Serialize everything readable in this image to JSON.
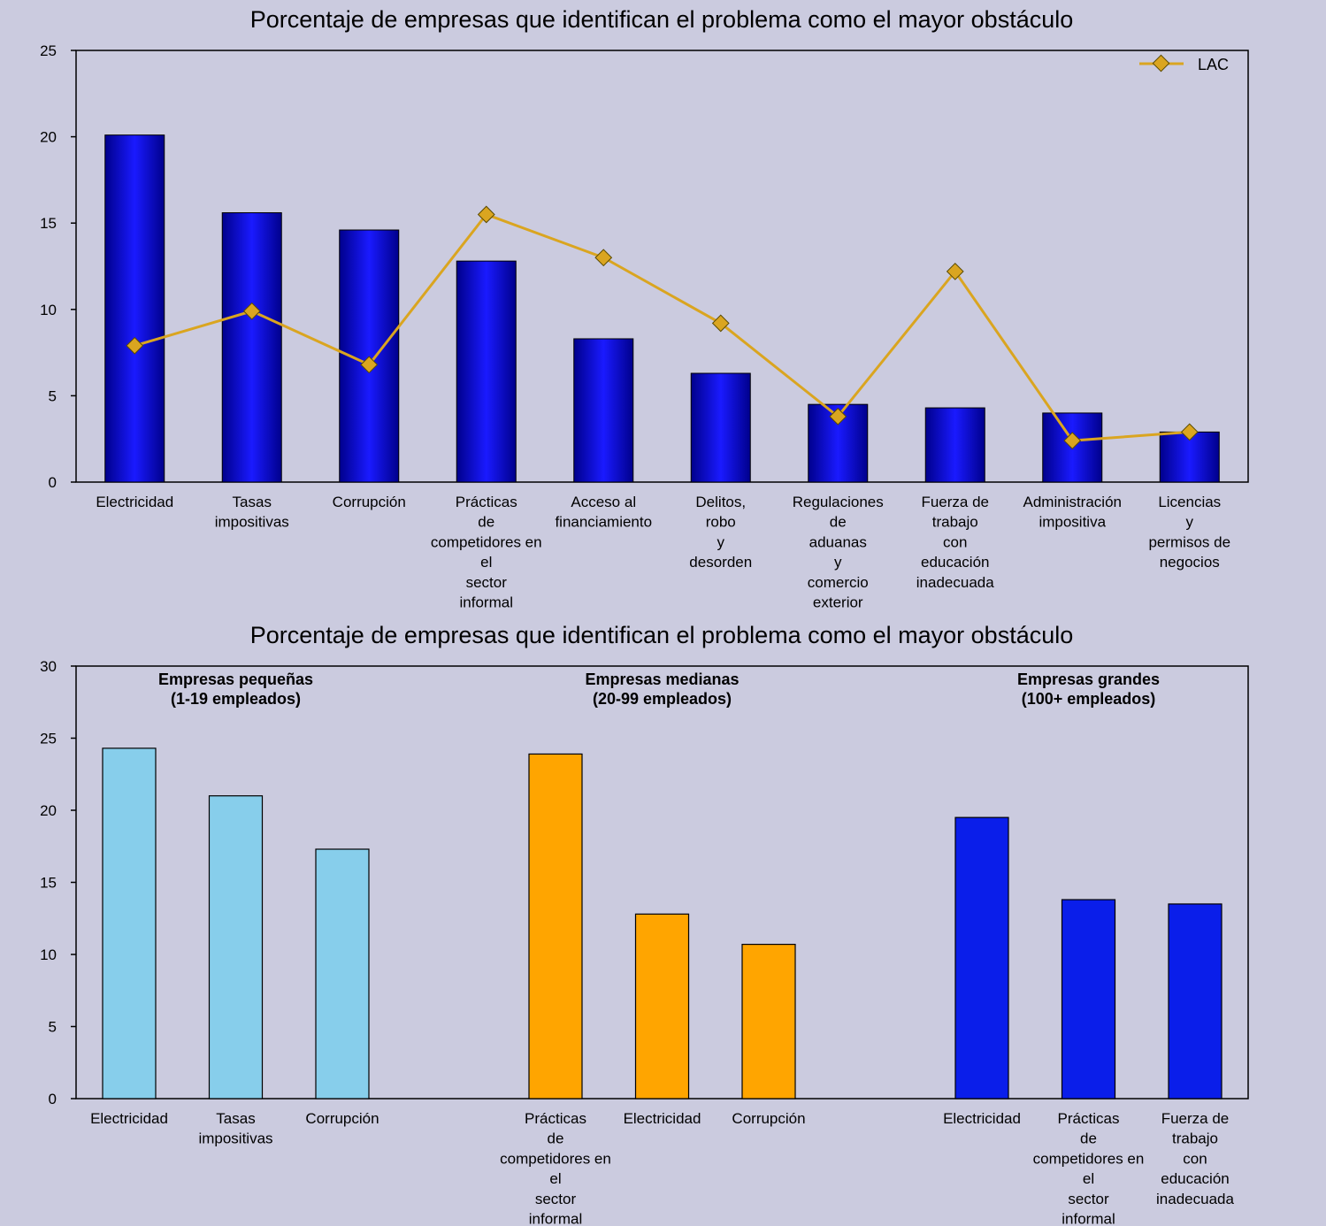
{
  "chart_data": [
    {
      "type": "bar",
      "title": "Porcentaje de empresas que identifican el problema como el mayor obstáculo",
      "ylim": [
        0,
        25
      ],
      "yticks": [
        0,
        5,
        10,
        15,
        20,
        25
      ],
      "grid": false,
      "legend": {
        "position": "top-right",
        "entries": [
          "LAC"
        ]
      },
      "categories": [
        "Electricidad",
        "Tasas impositivas",
        "Corrupción",
        "Prácticas de competidores en el sector informal",
        "Acceso al financiamiento",
        "Delitos, robo y desorden",
        "Regulaciones de aduanas y comercio exterior",
        "Fuerza de trabajo con educación inadecuada",
        "Administración impositiva",
        "Licencias y permisos de negocios"
      ],
      "category_lines": [
        [
          "Electricidad"
        ],
        [
          "Tasas",
          "impositivas"
        ],
        [
          "Corrupción"
        ],
        [
          "Prácticas",
          "de",
          "competidores en",
          "el",
          "sector",
          "informal"
        ],
        [
          "Acceso al",
          "financiamiento"
        ],
        [
          "Delitos,",
          "robo",
          "y",
          "desorden"
        ],
        [
          "Regulaciones",
          "de",
          "aduanas",
          "y",
          "comercio",
          "exterior"
        ],
        [
          "Fuerza de",
          "trabajo",
          "con",
          "educación",
          "inadecuada"
        ],
        [
          "Administración",
          "impositiva"
        ],
        [
          "Licencias",
          "y",
          "permisos de",
          "negocios"
        ]
      ],
      "series": [
        {
          "type": "bar",
          "values": [
            20.1,
            15.6,
            14.6,
            12.8,
            8.3,
            6.3,
            4.5,
            4.3,
            4.0,
            2.9
          ],
          "color": "#0a0ad6"
        },
        {
          "type": "line",
          "name": "LAC",
          "values": [
            7.9,
            9.9,
            6.8,
            15.5,
            13.0,
            9.2,
            3.8,
            12.2,
            2.4,
            2.9
          ],
          "color": "#daa520"
        }
      ]
    },
    {
      "type": "bar",
      "title": "Porcentaje de empresas que identifican el problema como el mayor obstáculo",
      "ylim": [
        0,
        30
      ],
      "yticks": [
        0,
        5,
        10,
        15,
        20,
        25,
        30
      ],
      "grid": false,
      "groups": [
        {
          "label_lines": [
            "Empresas pequeñas",
            "(1-19 empleados)"
          ],
          "color": "#87ceeb",
          "categories": [
            "Electricidad",
            "Tasas impositivas",
            "Corrupción"
          ],
          "category_lines": [
            [
              "Electricidad"
            ],
            [
              "Tasas",
              "impositivas"
            ],
            [
              "Corrupción"
            ]
          ],
          "values": [
            24.3,
            21.0,
            17.3
          ]
        },
        {
          "label_lines": [
            "Empresas medianas",
            "(20-99 empleados)"
          ],
          "color": "#ffa500",
          "categories": [
            "Prácticas de competidores en el sector informal",
            "Electricidad",
            "Corrupción"
          ],
          "category_lines": [
            [
              "Prácticas",
              "de",
              "competidores en",
              "el",
              "sector",
              "informal"
            ],
            [
              "Electricidad"
            ],
            [
              "Corrupción"
            ]
          ],
          "values": [
            23.9,
            12.8,
            10.7
          ]
        },
        {
          "label_lines": [
            "Empresas grandes",
            "(100+ empleados)"
          ],
          "color": "#0a1eea",
          "categories": [
            "Electricidad",
            "Prácticas de competidores en el sector informal",
            "Fuerza de trabajo con educación inadecuada"
          ],
          "category_lines": [
            [
              "Electricidad"
            ],
            [
              "Prácticas",
              "de",
              "competidores en",
              "el",
              "sector",
              "informal"
            ],
            [
              "Fuerza de",
              "trabajo",
              "con",
              "educación",
              "inadecuada"
            ]
          ],
          "values": [
            19.5,
            13.8,
            13.5
          ]
        }
      ]
    }
  ]
}
